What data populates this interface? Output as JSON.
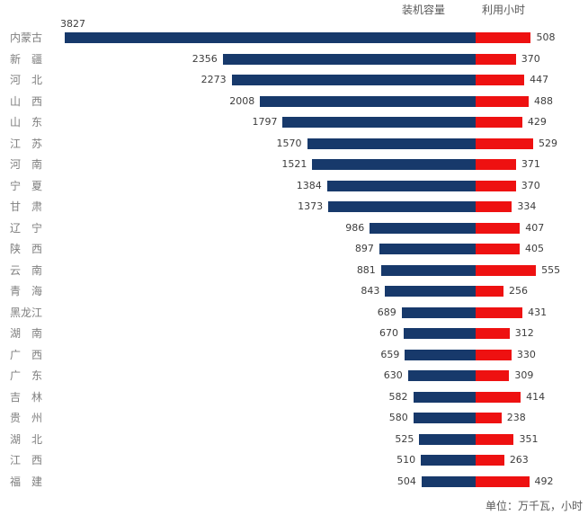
{
  "legend": {
    "capacity_label": "装机容量",
    "hours_label": "利用小时"
  },
  "footer": {
    "unit_note": "单位：万千瓦，小时"
  },
  "colors": {
    "capacity_bar": "#17396B",
    "hours_bar": "#EE1111",
    "province_text": "#7f7f7f",
    "value_text": "#3d3d3d",
    "legend_text": "#595959"
  },
  "chart_data": {
    "type": "bar",
    "orientation": "horizontal-diverging",
    "title": "",
    "xlabel": "",
    "ylabel": "",
    "unit_note": "单位：万千瓦，小时",
    "legend_position": "top-right",
    "grid": false,
    "categories": [
      "内蒙古",
      "新　疆",
      "河　北",
      "山　西",
      "山　东",
      "江　苏",
      "河　南",
      "宁　夏",
      "甘　肃",
      "辽　宁",
      "陕　西",
      "云　南",
      "青　海",
      "黑龙江",
      "湖　南",
      "广　西",
      "广　东",
      "吉　林",
      "贵　州",
      "湖　北",
      "江　西",
      "福　建"
    ],
    "series": [
      {
        "name": "装机容量",
        "direction": "left",
        "color": "#17396B",
        "values": [
          3827,
          2356,
          2273,
          2008,
          1797,
          1570,
          1521,
          1384,
          1373,
          986,
          897,
          881,
          843,
          689,
          670,
          659,
          630,
          582,
          580,
          525,
          510,
          504
        ]
      },
      {
        "name": "利用小时",
        "direction": "right",
        "color": "#EE1111",
        "values": [
          508,
          370,
          447,
          488,
          429,
          529,
          371,
          370,
          334,
          407,
          405,
          555,
          256,
          431,
          312,
          330,
          309,
          414,
          238,
          351,
          263,
          492
        ]
      }
    ]
  }
}
